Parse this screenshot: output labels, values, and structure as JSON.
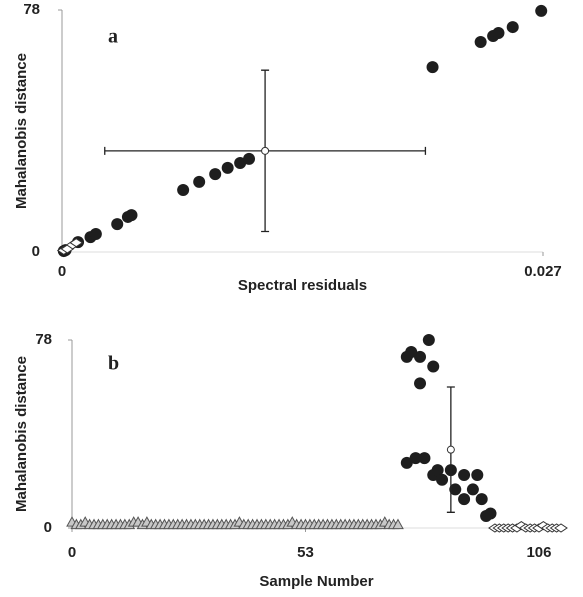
{
  "chart_data": [
    {
      "type": "scatter",
      "label": "a",
      "xlabel": "Spectral residuals",
      "ylabel": "Mahalanobis distance",
      "xlim": [
        0,
        0.027
      ],
      "ylim": [
        0,
        78
      ],
      "xticks": [
        0,
        0.027
      ],
      "yticks": [
        0,
        78
      ],
      "series": [
        {
          "marker": "circle",
          "color": "#1e1e1e",
          "x": [
            0.0001,
            0.0002,
            0.0009,
            0.0016,
            0.0019,
            0.0031,
            0.0037,
            0.0039,
            0.0068,
            0.0077,
            0.0086,
            0.0093,
            0.01,
            0.0105,
            0.0208,
            0.0235,
            0.0242,
            0.0245,
            0.0253,
            0.0269
          ],
          "values": [
            0.3,
            0.6,
            3.2,
            4.8,
            5.8,
            9.0,
            11.3,
            11.9,
            20.0,
            22.6,
            25.1,
            27.1,
            28.7,
            30.0,
            59.6,
            67.7,
            69.6,
            70.6,
            72.5,
            77.7
          ]
        },
        {
          "marker": "diamond",
          "color": "#ffffff",
          "x": [
            0.0001,
            0.0003,
            0.0006,
            0.0008
          ],
          "values": [
            0.5,
            1.0,
            2.3,
            3.0
          ]
        },
        {
          "marker": "open-circle",
          "color": "#ffffff",
          "x": [
            0.0114
          ],
          "values": [
            32.6
          ],
          "x_errors": [
            0.009
          ],
          "errors": [
            26
          ]
        }
      ]
    },
    {
      "type": "scatter",
      "label": "b",
      "xlabel": "Sample Number",
      "ylabel": "Mahalanobis distance",
      "xlim": [
        0,
        111
      ],
      "ylim": [
        0,
        78
      ],
      "xticks": [
        0,
        53,
        106
      ],
      "yticks": [
        0,
        78
      ],
      "series": [
        {
          "marker": "triangle",
          "color": "#c8c8c8",
          "x": [
            0,
            1,
            2,
            3,
            4,
            5,
            6,
            7,
            8,
            9,
            10,
            11,
            12,
            13,
            14,
            15,
            16,
            17,
            18,
            19,
            20,
            21,
            22,
            23,
            24,
            25,
            26,
            27,
            28,
            29,
            30,
            31,
            32,
            33,
            34,
            35,
            36,
            37,
            38,
            39,
            40,
            41,
            42,
            43,
            44,
            45,
            46,
            47,
            48,
            49,
            50,
            51,
            52,
            53,
            54,
            55,
            56,
            57,
            58,
            59,
            60,
            61,
            62,
            63,
            64,
            65,
            66,
            67,
            68,
            69,
            70,
            71,
            72,
            73,
            74
          ],
          "values": [
            2,
            1,
            1,
            2,
            1,
            1,
            1,
            1,
            1,
            1,
            1,
            1,
            1,
            1,
            2,
            2,
            1,
            2,
            1,
            1,
            1,
            1,
            1,
            1,
            1,
            1,
            1,
            1,
            1,
            1,
            1,
            1,
            1,
            1,
            1,
            1,
            1,
            1,
            2,
            1,
            1,
            1,
            1,
            1,
            1,
            1,
            1,
            1,
            1,
            1,
            2,
            1,
            1,
            1,
            1,
            1,
            1,
            1,
            1,
            1,
            1,
            1,
            1,
            1,
            1,
            1,
            1,
            1,
            1,
            1,
            1,
            2,
            1,
            1,
            1
          ]
        },
        {
          "marker": "circle",
          "color": "#1e1e1e",
          "x": [
            76,
            77,
            79,
            81,
            79,
            82,
            76,
            78,
            80,
            82,
            83,
            84,
            86,
            87,
            89,
            91,
            92,
            93,
            94,
            95,
            89
          ],
          "values": [
            71,
            73,
            71,
            78,
            60,
            67,
            27,
            29,
            29,
            22,
            24,
            20,
            24,
            16,
            22,
            16,
            22,
            12,
            5,
            6,
            12
          ]
        },
        {
          "marker": "diamond",
          "color": "#ffffff",
          "x": [
            96,
            97,
            98,
            99,
            100,
            101,
            102,
            103,
            104,
            105,
            106,
            107,
            108,
            109,
            110,
            111
          ],
          "values": [
            0,
            0,
            0,
            0,
            0,
            0,
            1,
            0,
            0,
            0,
            0,
            1,
            0,
            0,
            0,
            0
          ]
        },
        {
          "marker": "open-circle",
          "color": "#ffffff",
          "x": [
            86
          ],
          "values": [
            32.5
          ],
          "errors": [
            26
          ]
        }
      ]
    }
  ]
}
